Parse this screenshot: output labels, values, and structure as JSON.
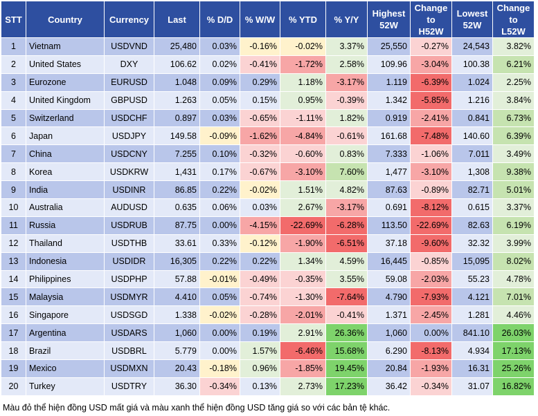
{
  "headers": {
    "stt": "STT",
    "country": "Country",
    "currency": "Currency",
    "last": "Last",
    "dd": "% D/D",
    "ww": "% W/W",
    "ytd": "% YTD",
    "yy": "% Y/Y",
    "high_1": "Highest",
    "high_2": "52W",
    "chh_1": "Change",
    "chh_2": "to",
    "chh_3": "H52W",
    "low_1": "Lowest",
    "low_2": "52W",
    "chl_1": "Change",
    "chl_2": "to",
    "chl_3": "L52W"
  },
  "colors": {
    "header_bg": "#2e4fa0",
    "row_odd": "#b9c6ea",
    "row_even": "#e3e9f8",
    "red_strong": "#f26b6b",
    "red_mid": "#f7a6a6",
    "red_light": "#fbd3d3",
    "yellow": "#fff2cc",
    "green_light": "#e2efd9",
    "green_mid": "#c6e3b0",
    "green_strong": "#7ed36b"
  },
  "rows": [
    {
      "stt": "1",
      "country": "Vietnam",
      "currency": "USDVND",
      "last": "25,480",
      "dd": "0.03%",
      "ww": "-0.16%",
      "ytd": "-0.02%",
      "yy": "3.37%",
      "high": "25,550",
      "chh": "-0.27%",
      "low": "24,543",
      "chl": "3.82%"
    },
    {
      "stt": "2",
      "country": "United States",
      "currency": "DXY",
      "last": "106.62",
      "dd": "0.02%",
      "ww": "-0.41%",
      "ytd": "-1.72%",
      "yy": "2.58%",
      "high": "109.96",
      "chh": "-3.04%",
      "low": "100.38",
      "chl": "6.21%"
    },
    {
      "stt": "3",
      "country": "Eurozone",
      "currency": "EURUSD",
      "last": "1.048",
      "dd": "0.09%",
      "ww": "0.29%",
      "ytd": "1.18%",
      "yy": "-3.17%",
      "high": "1.119",
      "chh": "-6.39%",
      "low": "1.024",
      "chl": "2.25%"
    },
    {
      "stt": "4",
      "country": "United Kingdom",
      "currency": "GBPUSD",
      "last": "1.263",
      "dd": "0.05%",
      "ww": "0.15%",
      "ytd": "0.95%",
      "yy": "-0.39%",
      "high": "1.342",
      "chh": "-5.85%",
      "low": "1.216",
      "chl": "3.84%"
    },
    {
      "stt": "5",
      "country": "Switzerland",
      "currency": "USDCHF",
      "last": "0.897",
      "dd": "0.03%",
      "ww": "-0.65%",
      "ytd": "-1.11%",
      "yy": "1.82%",
      "high": "0.919",
      "chh": "-2.41%",
      "low": "0.841",
      "chl": "6.73%"
    },
    {
      "stt": "6",
      "country": "Japan",
      "currency": "USDJPY",
      "last": "149.58",
      "dd": "-0.09%",
      "ww": "-1.62%",
      "ytd": "-4.84%",
      "yy": "-0.61%",
      "high": "161.68",
      "chh": "-7.48%",
      "low": "140.60",
      "chl": "6.39%"
    },
    {
      "stt": "7",
      "country": "China",
      "currency": "USDCNY",
      "last": "7.255",
      "dd": "0.10%",
      "ww": "-0.32%",
      "ytd": "-0.60%",
      "yy": "0.83%",
      "high": "7.333",
      "chh": "-1.06%",
      "low": "7.011",
      "chl": "3.49%"
    },
    {
      "stt": "8",
      "country": "Korea",
      "currency": "USDKRW",
      "last": "1,431",
      "dd": "0.17%",
      "ww": "-0.67%",
      "ytd": "-3.10%",
      "yy": "7.60%",
      "high": "1,477",
      "chh": "-3.10%",
      "low": "1,308",
      "chl": "9.38%"
    },
    {
      "stt": "9",
      "country": "India",
      "currency": "USDINR",
      "last": "86.85",
      "dd": "0.22%",
      "ww": "-0.02%",
      "ytd": "1.51%",
      "yy": "4.82%",
      "high": "87.63",
      "chh": "-0.89%",
      "low": "82.71",
      "chl": "5.01%"
    },
    {
      "stt": "10",
      "country": "Australia",
      "currency": "AUDUSD",
      "last": "0.635",
      "dd": "0.06%",
      "ww": "0.03%",
      "ytd": "2.67%",
      "yy": "-3.17%",
      "high": "0.691",
      "chh": "-8.12%",
      "low": "0.615",
      "chl": "3.37%"
    },
    {
      "stt": "11",
      "country": "Russia",
      "currency": "USDRUB",
      "last": "87.75",
      "dd": "0.00%",
      "ww": "-4.15%",
      "ytd": "-22.69%",
      "yy": "-6.28%",
      "high": "113.50",
      "chh": "-22.69%",
      "low": "82.63",
      "chl": "6.19%"
    },
    {
      "stt": "12",
      "country": "Thailand",
      "currency": "USDTHB",
      "last": "33.61",
      "dd": "0.33%",
      "ww": "-0.12%",
      "ytd": "-1.90%",
      "yy": "-6.51%",
      "high": "37.18",
      "chh": "-9.60%",
      "low": "32.32",
      "chl": "3.99%"
    },
    {
      "stt": "13",
      "country": "Indonesia",
      "currency": "USDIDR",
      "last": "16,305",
      "dd": "0.22%",
      "ww": "0.22%",
      "ytd": "1.34%",
      "yy": "4.59%",
      "high": "16,445",
      "chh": "-0.85%",
      "low": "15,095",
      "chl": "8.02%"
    },
    {
      "stt": "14",
      "country": "Philippines",
      "currency": "USDPHP",
      "last": "57.88",
      "dd": "-0.01%",
      "ww": "-0.49%",
      "ytd": "-0.35%",
      "yy": "3.55%",
      "high": "59.08",
      "chh": "-2.03%",
      "low": "55.23",
      "chl": "4.78%"
    },
    {
      "stt": "15",
      "country": "Malaysia",
      "currency": "USDMYR",
      "last": "4.410",
      "dd": "0.05%",
      "ww": "-0.74%",
      "ytd": "-1.30%",
      "yy": "-7.64%",
      "high": "4.790",
      "chh": "-7.93%",
      "low": "4.121",
      "chl": "7.01%"
    },
    {
      "stt": "16",
      "country": "Singapore",
      "currency": "USDSGD",
      "last": "1.338",
      "dd": "-0.02%",
      "ww": "-0.28%",
      "ytd": "-2.01%",
      "yy": "-0.41%",
      "high": "1.371",
      "chh": "-2.45%",
      "low": "1.281",
      "chl": "4.46%"
    },
    {
      "stt": "17",
      "country": "Argentina",
      "currency": "USDARS",
      "last": "1,060",
      "dd": "0.00%",
      "ww": "0.19%",
      "ytd": "2.91%",
      "yy": "26.36%",
      "high": "1,060",
      "chh": "0.00%",
      "low": "841.10",
      "chl": "26.03%"
    },
    {
      "stt": "18",
      "country": "Brazil",
      "currency": "USDBRL",
      "last": "5.779",
      "dd": "0.00%",
      "ww": "1.57%",
      "ytd": "-6.46%",
      "yy": "15.68%",
      "high": "6.290",
      "chh": "-8.13%",
      "low": "4.934",
      "chl": "17.13%"
    },
    {
      "stt": "19",
      "country": "Mexico",
      "currency": "USDMXN",
      "last": "20.43",
      "dd": "-0.18%",
      "ww": "0.96%",
      "ytd": "-1.85%",
      "yy": "19.45%",
      "high": "20.84",
      "chh": "-1.93%",
      "low": "16.31",
      "chl": "25.26%"
    },
    {
      "stt": "20",
      "country": "Turkey",
      "currency": "USDTRY",
      "last": "36.30",
      "dd": "-0.34%",
      "ww": "0.13%",
      "ytd": "2.73%",
      "yy": "17.23%",
      "high": "36.42",
      "chh": "-0.34%",
      "low": "31.07",
      "chl": "16.82%"
    }
  ],
  "footnote": "Màu đỏ thể hiện đồng USD mất giá và màu xanh thể hiện đồng USD tăng giá so với các bản tệ khác."
}
